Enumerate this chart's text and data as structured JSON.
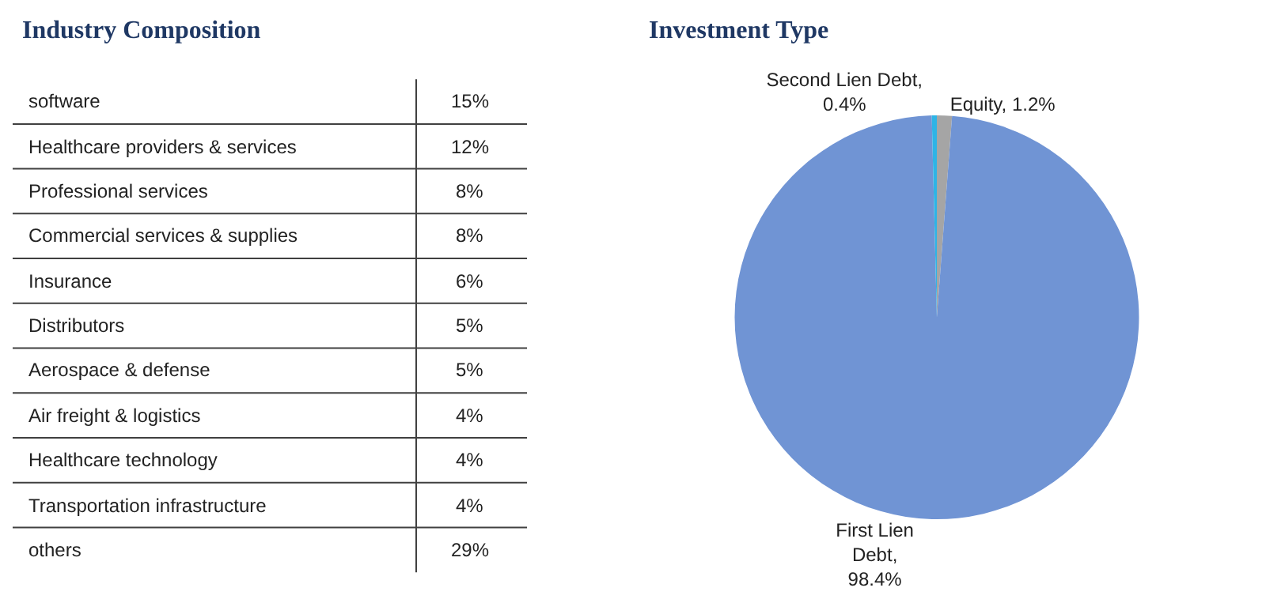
{
  "chart_data": [
    {
      "type": "other",
      "title": "Industry Composition",
      "categories": [
        "software",
        "Healthcare providers & services",
        "Professional services",
        "Commercial services & supplies",
        "Insurance",
        "Distributors",
        "Aerospace & defense",
        "Air freight & logistics",
        "Healthcare technology",
        "Transportation infrastructure",
        "others"
      ],
      "value_labels": [
        "15%",
        "12%",
        "8%",
        "8%",
        "6%",
        "5%",
        "5%",
        "4%",
        "4%",
        "4%",
        "29%"
      ]
    },
    {
      "type": "pie",
      "title": "Investment Type",
      "categories": [
        "Equity",
        "First Lien\nDebt",
        "Second Lien Debt"
      ],
      "values": [
        1.2,
        98.4,
        0.4
      ],
      "colors": [
        "#a5a5a5",
        "#7094d4",
        "#2eb4e6"
      ],
      "value_labels": [
        ", 1.2%",
        ",\n98.4%",
        ",\n0.4%"
      ]
    }
  ]
}
